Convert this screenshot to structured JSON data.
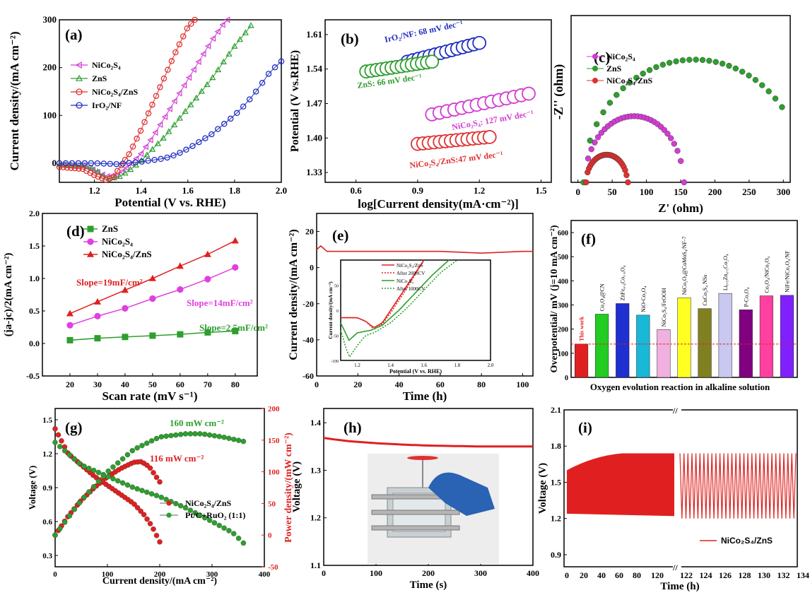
{
  "chart_data": [
    {
      "panel": "(a)",
      "type": "line",
      "xlabel": "Potential (V vs. RHE)",
      "ylabel": "Current density/(mA cm⁻²)",
      "xlim": [
        1.05,
        2.0
      ],
      "ylim": [
        -40,
        300
      ],
      "xticks": [
        "1.2",
        "1.4",
        "1.6",
        "1.8",
        "2.0"
      ],
      "yticks": [
        "0",
        "100",
        "200",
        "300"
      ],
      "legend": "top-left",
      "series": [
        {
          "name": "NiCo₂S₄",
          "color": "#d23cd2",
          "marker": "triangle-left",
          "x": [
            1.05,
            1.15,
            1.2,
            1.25,
            1.3,
            1.35,
            1.4,
            1.45,
            1.5,
            1.55,
            1.6,
            1.65,
            1.7,
            1.75,
            1.77
          ],
          "y": [
            -3,
            -5,
            -15,
            -28,
            -25,
            -5,
            20,
            55,
            95,
            135,
            175,
            215,
            255,
            290,
            300
          ]
        },
        {
          "name": "ZnS",
          "color": "#2e9e2e",
          "marker": "triangle-up",
          "x": [
            1.05,
            1.15,
            1.2,
            1.25,
            1.3,
            1.35,
            1.4,
            1.45,
            1.5,
            1.55,
            1.6,
            1.65,
            1.7,
            1.75,
            1.8,
            1.85,
            1.87
          ],
          "y": [
            -3,
            -5,
            -12,
            -32,
            -30,
            -15,
            5,
            30,
            55,
            85,
            115,
            145,
            175,
            210,
            245,
            275,
            288
          ]
        },
        {
          "name": "NiCo₂S₄/ZnS",
          "color": "#e03030",
          "marker": "circle",
          "x": [
            1.05,
            1.15,
            1.2,
            1.25,
            1.28,
            1.3,
            1.35,
            1.4,
            1.45,
            1.5,
            1.55,
            1.6,
            1.63
          ],
          "y": [
            -8,
            -12,
            -25,
            -35,
            -30,
            -15,
            20,
            70,
            125,
            180,
            235,
            285,
            300
          ]
        },
        {
          "name": "IrO₂/NF",
          "color": "#1f2fc0",
          "marker": "circle",
          "x": [
            1.05,
            1.2,
            1.3,
            1.4,
            1.5,
            1.55,
            1.6,
            1.65,
            1.7,
            1.75,
            1.8,
            1.85,
            1.9,
            1.95,
            2.0
          ],
          "y": [
            0,
            0,
            -2,
            3,
            10,
            18,
            30,
            45,
            60,
            80,
            100,
            125,
            155,
            190,
            213
          ]
        }
      ]
    },
    {
      "panel": "(b)",
      "type": "scatter",
      "xlabel": "log[Current density(mA·cm⁻²)]",
      "ylabel": "Potential (V vs.RHE)",
      "xlim": [
        0.45,
        1.55
      ],
      "ylim": [
        1.31,
        1.64
      ],
      "xticks": [
        "0.6",
        "0.9",
        "1.2",
        "1.5"
      ],
      "yticks": [
        "1.33",
        "1.40",
        "1.47",
        "1.54",
        "1.61"
      ],
      "series": [
        {
          "name": "IrO₂/NF",
          "label": "IrO₂/NF: 68 mV dec⁻¹",
          "color": "#1f2fc0",
          "x_range": [
            0.85,
            1.2
          ],
          "y_range": [
            1.555,
            1.593
          ]
        },
        {
          "name": "ZnS",
          "label": "ZnS: 66 mV dec⁻¹",
          "color": "#2e9e2e",
          "x_range": [
            0.65,
            0.97
          ],
          "y_range": [
            1.535,
            1.555
          ]
        },
        {
          "name": "NiCo₂S₄",
          "label": "NiCo₂S₄: 127 mV dec⁻¹",
          "color": "#d23cd2",
          "x_range": [
            0.97,
            1.44
          ],
          "y_range": [
            1.448,
            1.49
          ]
        },
        {
          "name": "NiCo₂S₄/ZnS",
          "label": "NiCo₂S₄/ZnS:47 mV dec⁻¹",
          "color": "#e03030",
          "x_range": [
            0.9,
            1.25
          ],
          "y_range": [
            1.388,
            1.402
          ]
        }
      ]
    },
    {
      "panel": "(c)",
      "type": "scatter",
      "xlabel": "Z' (ohm)",
      "ylabel": "-Z'' (ohm)",
      "xlim": [
        0,
        300
      ],
      "ylim": [
        0,
        185
      ],
      "xticks": [
        "0",
        "50",
        "100",
        "150",
        "200",
        "250",
        "300"
      ],
      "yticks": [],
      "legend": "top-left",
      "series": [
        {
          "name": "NiCo₂S₄",
          "color": "#d23cd2",
          "center": 82,
          "radius": 72,
          "x_end": 155
        },
        {
          "name": "ZnS",
          "color": "#2e9e2e",
          "center": 170,
          "radius": 162,
          "x_end": 298
        },
        {
          "name": "NiCo₂S₄/ZnS",
          "color": "#e03030",
          "center": 42,
          "radius": 30,
          "x_end": 73
        }
      ]
    },
    {
      "panel": "(d)",
      "type": "line",
      "xlabel": "Scan rate (mV s⁻¹)",
      "ylabel": "(ja-jc)/2(mA cm⁻²)",
      "xlim": [
        10,
        88
      ],
      "ylim": [
        -0.5,
        2.0
      ],
      "xticks": [
        "20",
        "30",
        "40",
        "50",
        "60",
        "70",
        "80"
      ],
      "yticks": [
        "-0.5",
        "0.0",
        "0.5",
        "1.0",
        "1.5",
        "2.0"
      ],
      "legend": "top-left",
      "series": [
        {
          "name": "ZnS",
          "color": "#2e9e2e",
          "marker": "square",
          "x": [
            20,
            30,
            40,
            50,
            60,
            70,
            80
          ],
          "y": [
            0.05,
            0.08,
            0.1,
            0.12,
            0.14,
            0.17,
            0.19
          ]
        },
        {
          "name": "NiCo₂S₄",
          "color": "#e040e0",
          "marker": "circle",
          "x": [
            20,
            30,
            40,
            50,
            60,
            70,
            80
          ],
          "y": [
            0.28,
            0.42,
            0.54,
            0.69,
            0.83,
            0.99,
            1.17
          ]
        },
        {
          "name": "NiCo₂S₄/ZnS",
          "color": "#e02020",
          "marker": "triangle-up",
          "x": [
            20,
            30,
            40,
            50,
            60,
            70,
            80
          ],
          "y": [
            0.46,
            0.64,
            0.82,
            1.0,
            1.19,
            1.37,
            1.58
          ]
        }
      ],
      "annotations": [
        {
          "text": "Slope=19mF/cm²",
          "color": "#e02020"
        },
        {
          "text": "Slope=14mF/cm²",
          "color": "#e040e0"
        },
        {
          "text": "Slope=2.5mF/cm²",
          "color": "#2e9e2e"
        }
      ]
    },
    {
      "panel": "(e)",
      "type": "line",
      "xlabel": "Time (h)",
      "ylabel": "Current density/(mA cm⁻²)",
      "xlim": [
        0,
        105
      ],
      "ylim": [
        -60,
        30
      ],
      "xticks": [
        "0",
        "20",
        "40",
        "60",
        "80",
        "100"
      ],
      "yticks": [
        "-60",
        "-40",
        "-20",
        "0",
        "20"
      ],
      "series": [
        {
          "name": "stability",
          "color": "#e02020",
          "x": [
            0,
            2,
            5,
            20,
            40,
            60,
            80,
            100,
            105
          ],
          "y": [
            10,
            12,
            9,
            9,
            9,
            9,
            8,
            9,
            9
          ]
        }
      ],
      "inset": {
        "xlabel": "Potential (V vs. RHE)",
        "ylabel": "Current density/(mA cm⁻²)",
        "xlim": [
          1.1,
          2.0
        ],
        "ylim": [
          -100,
          100
        ],
        "xticks": [
          "1.2",
          "1.4",
          "1.6",
          "1.8",
          "2.0"
        ],
        "yticks": [
          "-100",
          "-50",
          "0",
          "50"
        ],
        "series": [
          {
            "name": "NiCo₂S₄/ZnS",
            "color": "#e02020",
            "dash": false,
            "x": [
              1.1,
              1.2,
              1.25,
              1.3,
              1.35,
              1.4,
              1.5,
              1.6
            ],
            "y": [
              -15,
              -15,
              -22,
              -35,
              -25,
              0,
              50,
              100
            ]
          },
          {
            "name": "After 2000CV",
            "color": "#e02020",
            "dash": true,
            "x": [
              1.1,
              1.2,
              1.25,
              1.3,
              1.35,
              1.4,
              1.5,
              1.6
            ],
            "y": [
              -15,
              -15,
              -22,
              -38,
              -28,
              -5,
              45,
              100
            ]
          },
          {
            "name": "NiCo₂S₄",
            "color": "#2e9e2e",
            "dash": false,
            "x": [
              1.1,
              1.15,
              1.2,
              1.28,
              1.35,
              1.45,
              1.55,
              1.65,
              1.75
            ],
            "y": [
              -25,
              -60,
              -45,
              -40,
              -30,
              0,
              35,
              70,
              100
            ]
          },
          {
            "name": "After 1000CV",
            "color": "#2e9e2e",
            "dash": true,
            "x": [
              1.1,
              1.15,
              1.2,
              1.25,
              1.3,
              1.4,
              1.5,
              1.6,
              1.7,
              1.8
            ],
            "y": [
              -40,
              -95,
              -70,
              -50,
              -45,
              -25,
              5,
              40,
              75,
              100
            ]
          }
        ]
      }
    },
    {
      "panel": "(f)",
      "type": "bar",
      "xlabel": "Oxygen evolution reaction in alkaline solution",
      "ylabel": "Overpotential/ mV (j=10 mA cm⁻²)",
      "ylim": [
        0,
        650
      ],
      "yticks": [
        "0",
        "100",
        "200",
        "300",
        "400",
        "500",
        "600"
      ],
      "reference_line": 138,
      "categories": [
        "This work",
        "Co₃O₄@CN",
        "ZnFe₀.₄Co₁.₆O₄",
        "NiO-Co₃O₄",
        "NiCo₂S₄/FeOOH",
        "NiCo₂O₄@CoMoS₄/NF-7",
        "CuCo₂S₄ NSs",
        "Li₀.₅Zn₀.₅Co₂O₄",
        "P-Co₃O₄",
        "Co₃O₄/NiCo₂O₄",
        "NiFe/NiCo₂O₄/NF"
      ],
      "values": [
        138,
        262,
        306,
        258,
        198,
        330,
        285,
        348,
        280,
        338,
        340
      ],
      "colors": [
        "#e02020",
        "#22cc22",
        "#1f2fd0",
        "#18b8d8",
        "#f0b0e0",
        "#ffff22",
        "#808020",
        "#c8c8f0",
        "#800080",
        "#ff40a0",
        "#8020ff"
      ]
    },
    {
      "panel": "(g)",
      "type": "line",
      "xlabel": "Current density/(mA cm⁻²)",
      "ylabel": "Voltage (V)",
      "ylabel2": "Power density/(mW cm⁻²)",
      "xlim": [
        0,
        400
      ],
      "ylim": [
        0.2,
        1.6
      ],
      "y2lim": [
        -50,
        200
      ],
      "xticks": [
        "0",
        "100",
        "200",
        "300",
        "400"
      ],
      "yticks": [
        "0.3",
        "0.6",
        "0.9",
        "1.2",
        "1.5"
      ],
      "y2ticks": [
        "-50",
        "0",
        "50",
        "100",
        "150",
        "200"
      ],
      "legend": "center-right",
      "series": [
        {
          "name": "NiCo₂S₄/ZnS",
          "color": "#e02020",
          "axis": "left",
          "x": [
            0,
            25,
            50,
            75,
            100,
            125,
            150,
            170,
            185,
            200
          ],
          "y": [
            1.42,
            1.2,
            1.1,
            1.0,
            0.92,
            0.84,
            0.76,
            0.66,
            0.56,
            0.42
          ]
        },
        {
          "name": "NiCo₂S₄/ZnS power",
          "color": "#e02020",
          "axis": "right",
          "x": [
            0,
            25,
            50,
            75,
            100,
            125,
            150,
            165,
            180,
            200
          ],
          "y": [
            0,
            30,
            55,
            75,
            92,
            105,
            115,
            116,
            108,
            84
          ]
        },
        {
          "name": "Pt/C+RuO₂ (1:1)",
          "color": "#2e9e2e",
          "axis": "left",
          "x": [
            0,
            50,
            100,
            150,
            200,
            250,
            300,
            340,
            360
          ],
          "y": [
            1.3,
            1.1,
            1.0,
            0.9,
            0.82,
            0.72,
            0.6,
            0.5,
            0.41
          ]
        },
        {
          "name": "Pt/C+RuO₂ power",
          "color": "#2e9e2e",
          "axis": "right",
          "x": [
            0,
            50,
            100,
            150,
            200,
            250,
            280,
            320,
            360
          ],
          "y": [
            0,
            55,
            100,
            135,
            155,
            160,
            160,
            155,
            148
          ]
        }
      ],
      "annotations": [
        {
          "text": "160 mW cm⁻²",
          "color": "#2e9e2e"
        },
        {
          "text": "116 mW cm⁻²",
          "color": "#e02020"
        }
      ]
    },
    {
      "panel": "(h)",
      "type": "line",
      "xlabel": "Time (s)",
      "ylabel": "Voltage (V)",
      "xlim": [
        0,
        400
      ],
      "ylim": [
        1.1,
        1.43
      ],
      "xticks": [
        "0",
        "100",
        "200",
        "300",
        "400"
      ],
      "yticks": [
        "1.1",
        "1.2",
        "1.3",
        "1.4"
      ],
      "series": [
        {
          "name": "voltage",
          "color": "#e02020",
          "x": [
            0,
            20,
            50,
            100,
            150,
            200,
            250,
            300,
            350,
            400
          ],
          "y": [
            1.368,
            1.365,
            1.361,
            1.357,
            1.354,
            1.352,
            1.351,
            1.35,
            1.35,
            1.35
          ]
        }
      ]
    },
    {
      "panel": "(i)",
      "type": "area",
      "xlabel": "Time (h)",
      "ylabel": "Voltage (V)",
      "xlim": [
        0,
        134
      ],
      "ylim": [
        0.8,
        2.1
      ],
      "xticks": [
        "0",
        "20",
        "40",
        "60",
        "80",
        "120",
        "122",
        "124",
        "126",
        "128",
        "130",
        "132",
        "134"
      ],
      "yticks": [
        "0.9",
        "1.2",
        "1.5",
        "1.8",
        "2.1"
      ],
      "legend": "bottom-right",
      "series": [
        {
          "name": "NiCo₂S₄/ZnS",
          "color": "#e02020",
          "upper": [
            1.72,
            1.74,
            1.75,
            1.74
          ],
          "lower": [
            1.23,
            1.22,
            1.2,
            1.18
          ]
        }
      ]
    }
  ]
}
